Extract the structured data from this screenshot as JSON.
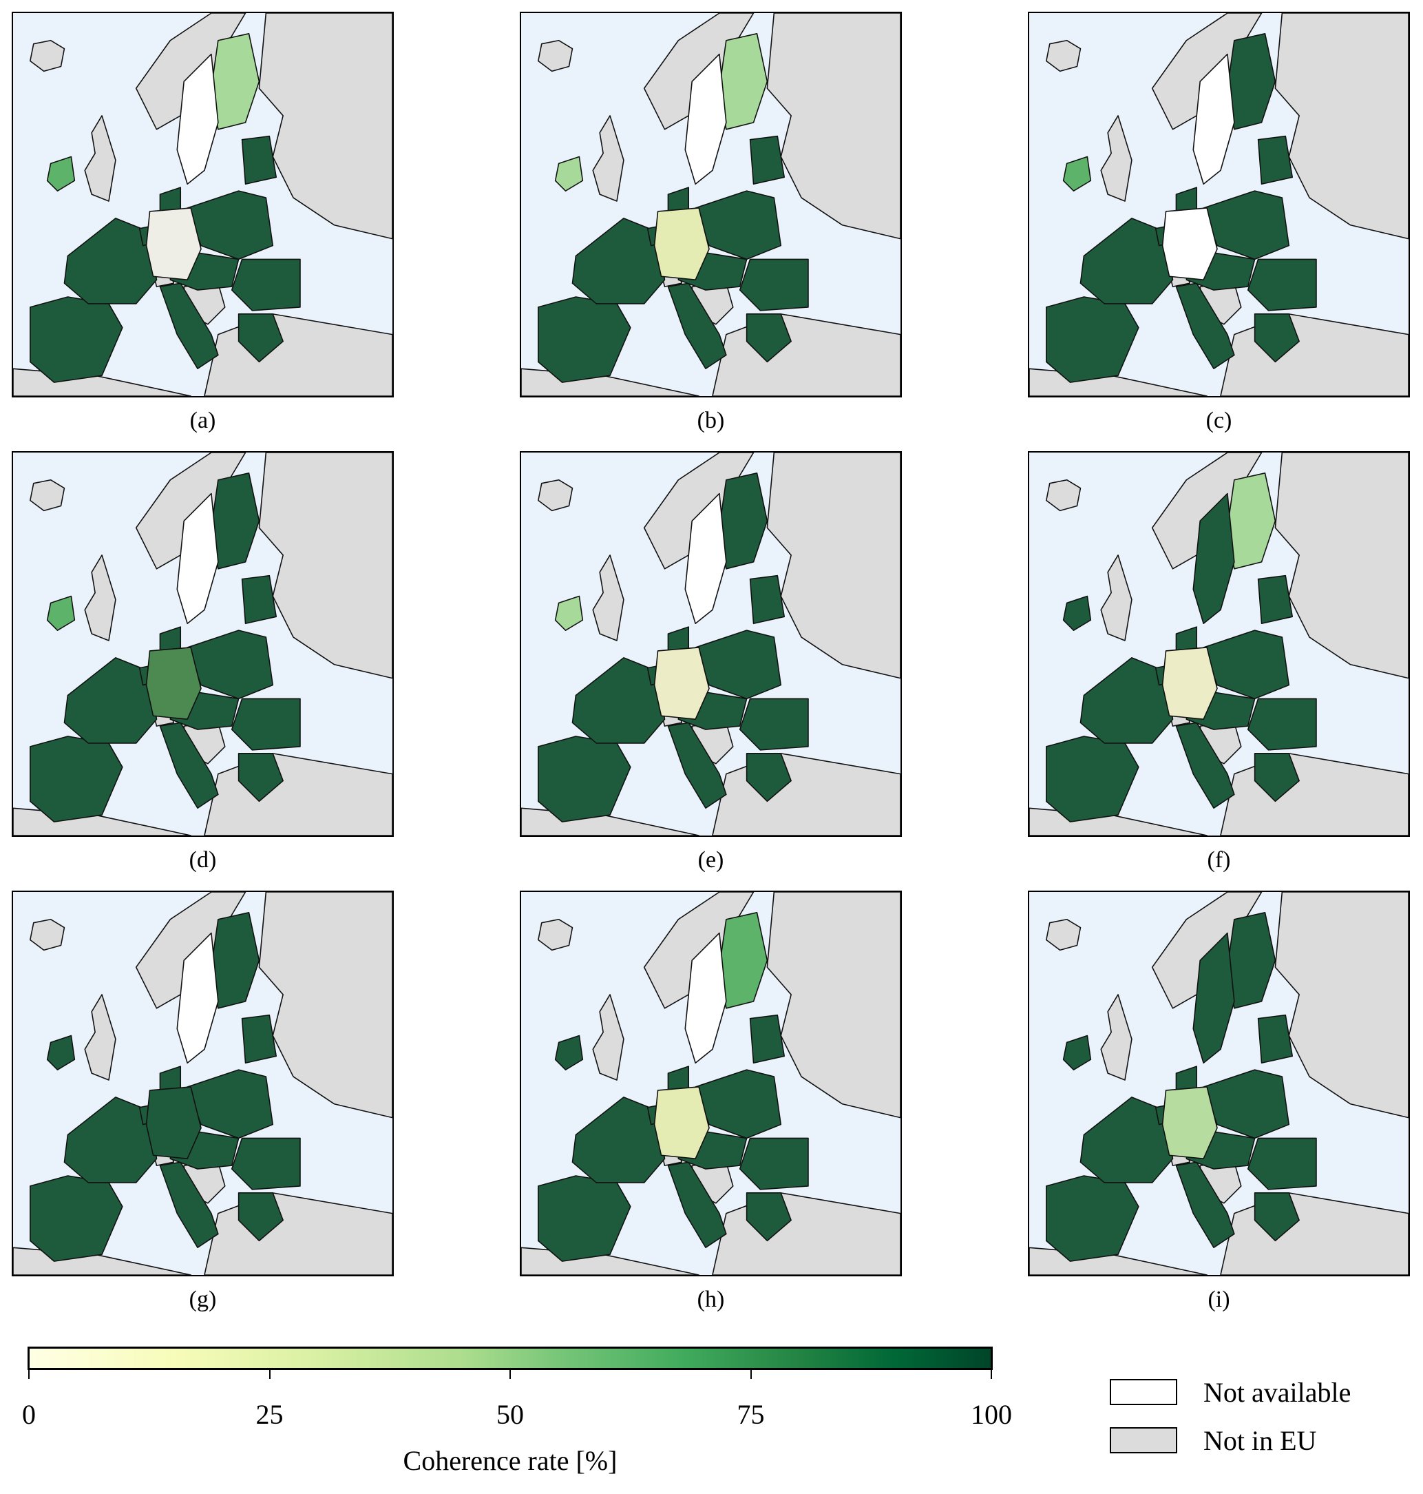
{
  "colors": {
    "sea": "#eaf3fc",
    "not_in_eu": "#dcdcdc",
    "not_available": "#ffffff",
    "eu_dark": "#1e5a3c",
    "low": "#f6f8d8",
    "mid": "#a3d690",
    "high": "#5eb36b"
  },
  "panels": [
    {
      "caption": "(a)",
      "germany": "#eeeee6",
      "ireland": "#5eb36b",
      "finland": "#a6d99a",
      "sweden": "not_available"
    },
    {
      "caption": "(b)",
      "germany": "#e4ecb4",
      "ireland": "#a6d99a",
      "finland": "#a6d99a",
      "sweden": "not_available"
    },
    {
      "caption": "(c)",
      "germany": "not_available",
      "ireland": "#5eb36b",
      "finland": "eu_dark",
      "sweden": "not_available"
    },
    {
      "caption": "(d)",
      "germany": "#4c8a52",
      "ireland": "#5eb36b",
      "finland": "eu_dark",
      "sweden": "not_available"
    },
    {
      "caption": "(e)",
      "germany": "#ecedc6",
      "ireland": "#a6d99a",
      "finland": "eu_dark",
      "sweden": "not_available"
    },
    {
      "caption": "(f)",
      "germany": "#ecedc6",
      "ireland": "eu_dark",
      "finland": "#a6d99a",
      "sweden": "eu_dark"
    },
    {
      "caption": "(g)",
      "germany": "eu_dark",
      "ireland": "eu_dark",
      "finland": "eu_dark",
      "sweden": "not_available"
    },
    {
      "caption": "(h)",
      "germany": "#e4ecb4",
      "ireland": "eu_dark",
      "finland": "#5eb36b",
      "sweden": "not_available"
    },
    {
      "caption": "(i)",
      "germany": "#b7dca0",
      "ireland": "eu_dark",
      "finland": "eu_dark",
      "sweden": "eu_dark"
    }
  ],
  "colorbar": {
    "title": "Coherence rate [%]",
    "ticks": [
      "0",
      "25",
      "50",
      "75",
      "100"
    ],
    "range": [
      0,
      100
    ]
  },
  "legend": [
    {
      "label": "Not available",
      "color": "#ffffff"
    },
    {
      "label": "Not in EU",
      "color": "#dcdcdc"
    }
  ]
}
